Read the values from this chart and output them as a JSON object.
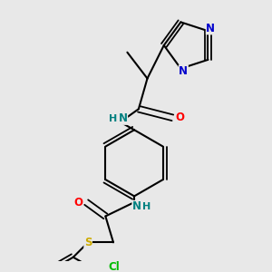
{
  "bg_color": "#e8e8e8",
  "bond_color": "#000000",
  "atom_colors": {
    "N": "#0000cc",
    "O": "#ff0000",
    "S": "#ccaa00",
    "Cl": "#00bb00",
    "NH": "#008080",
    "C": "#000000"
  },
  "font_size": 8.5,
  "fig_size": [
    3.0,
    3.0
  ],
  "dpi": 100
}
